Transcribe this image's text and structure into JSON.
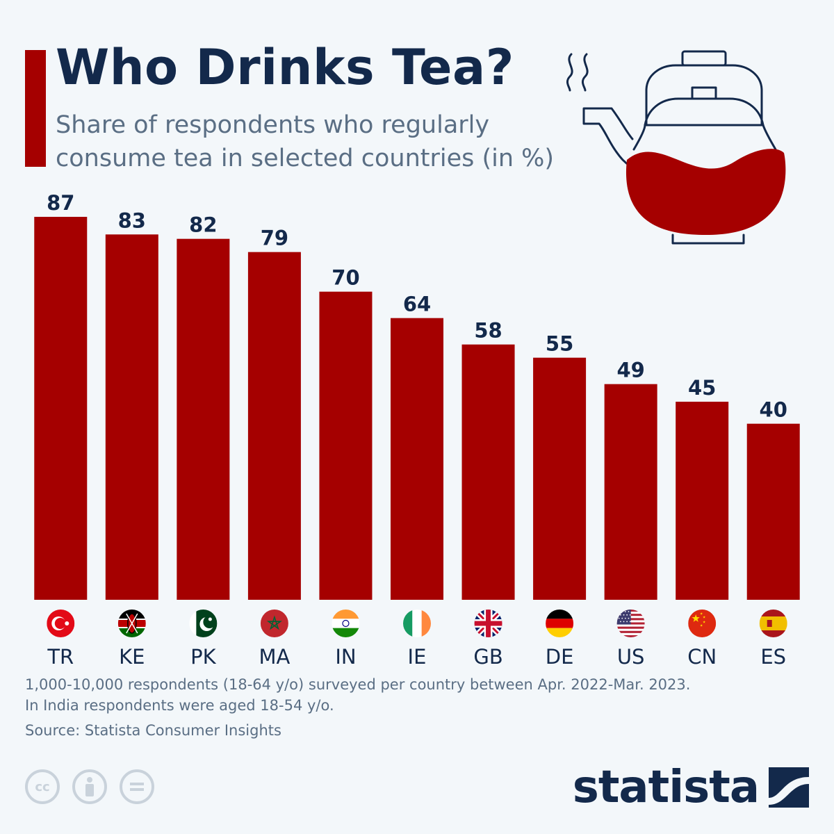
{
  "header": {
    "title": "Who Drinks Tea?",
    "subtitle": "Share of respondents who regularly consume tea in selected countries (in %)"
  },
  "colors": {
    "accent": "#a50000",
    "title": "#13294b",
    "text": "#5a6e84",
    "background": "#f3f7fa"
  },
  "chart_data": {
    "type": "bar",
    "categories": [
      "TR",
      "KE",
      "PK",
      "MA",
      "IN",
      "IE",
      "GB",
      "DE",
      "US",
      "CN",
      "ES"
    ],
    "values": [
      87,
      83,
      82,
      79,
      70,
      64,
      58,
      55,
      49,
      45,
      40
    ],
    "title": "Who Drinks Tea?",
    "subtitle": "Share of respondents who regularly consume tea in selected countries (in %)",
    "xlabel": "",
    "ylabel": "",
    "ylim": [
      0,
      87
    ],
    "grid": false,
    "data_labels": true,
    "flag_icons": [
      "turkey-flag-icon",
      "kenya-flag-icon",
      "pakistan-flag-icon",
      "morocco-flag-icon",
      "india-flag-icon",
      "ireland-flag-icon",
      "uk-flag-icon",
      "germany-flag-icon",
      "usa-flag-icon",
      "china-flag-icon",
      "spain-flag-icon"
    ]
  },
  "footer": {
    "note_line1": "1,000-10,000 respondents (18-64 y/o) surveyed per country between Apr. 2022-Mar. 2023.",
    "note_line2": "In India respondents were aged 18-54 y/o.",
    "source": "Source: Statista Consumer Insights",
    "logo_text": "statista",
    "license_icons": [
      "cc-icon",
      "attribution-icon",
      "no-derivatives-icon"
    ]
  }
}
